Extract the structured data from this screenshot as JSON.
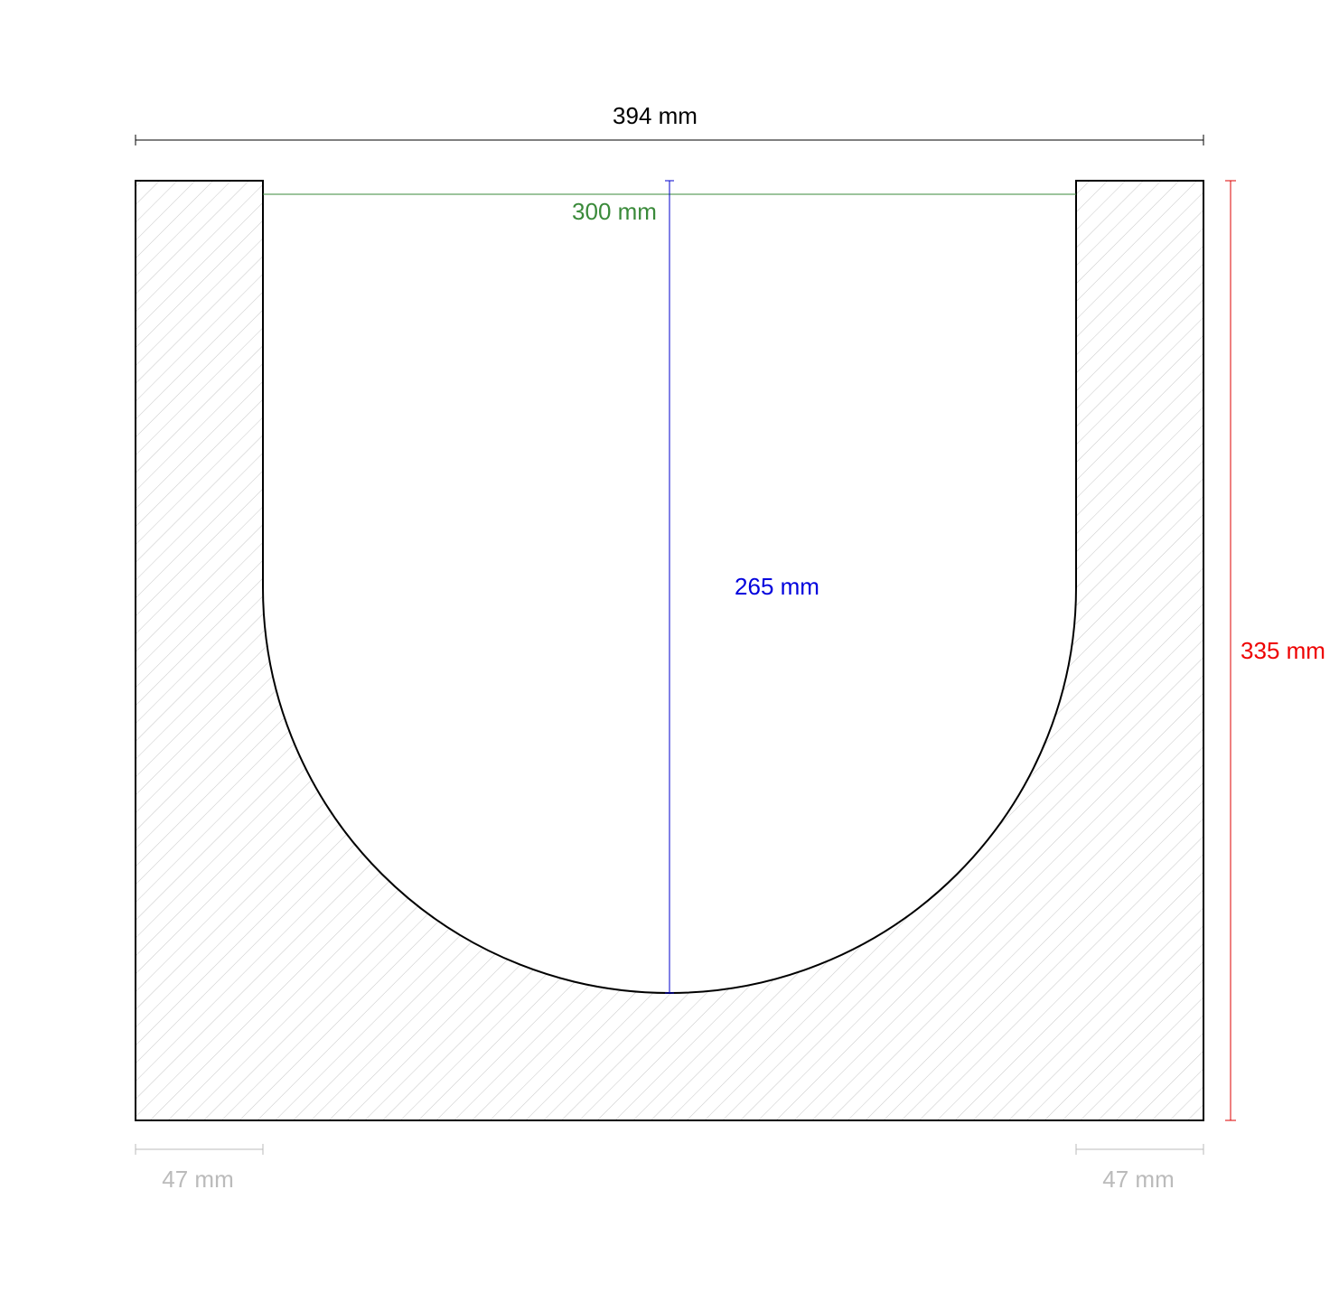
{
  "dimensions": {
    "overall_width": "394 mm",
    "inner_width": "300 mm",
    "depth": "265 mm",
    "height": "335 mm",
    "left_wall": "47 mm",
    "right_wall": "47 mm"
  }
}
